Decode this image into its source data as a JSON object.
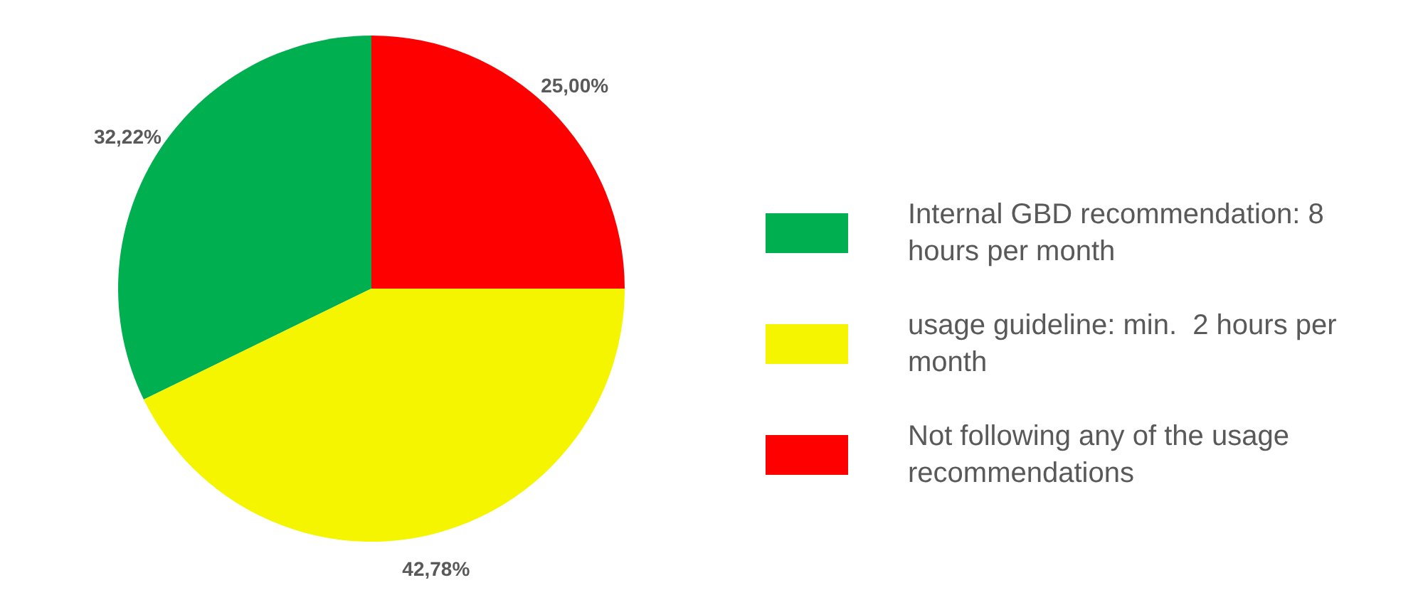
{
  "chart_data": {
    "type": "pie",
    "categories": [
      "Internal GBD recommendation: 8 hours per month",
      "usage guideline: min.  2 hours per month",
      "Not following any of the usage recommendations"
    ],
    "values": [
      32.22,
      42.78,
      25
    ],
    "colors": [
      "#00b050",
      "#f5f500",
      "#ff0000"
    ],
    "value_labels": [
      "32,22%",
      "42,78%",
      "25,00%"
    ],
    "legend": "right"
  }
}
